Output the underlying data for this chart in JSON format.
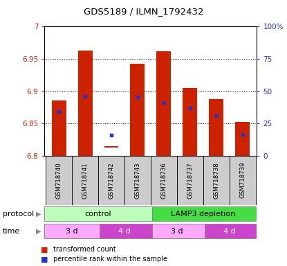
{
  "title": "GDS5189 / ILMN_1792432",
  "samples": [
    "GSM718740",
    "GSM718741",
    "GSM718742",
    "GSM718743",
    "GSM718736",
    "GSM718737",
    "GSM718738",
    "GSM718739"
  ],
  "bar_bottom": [
    6.8,
    6.8,
    6.813,
    6.8,
    6.8,
    6.8,
    6.8,
    6.8
  ],
  "bar_top": [
    6.885,
    6.963,
    6.815,
    6.942,
    6.962,
    6.905,
    6.888,
    6.852
  ],
  "blue_y": [
    6.868,
    6.892,
    6.832,
    6.891,
    6.882,
    6.874,
    6.862,
    6.833
  ],
  "ylim": [
    6.8,
    7.0
  ],
  "yticks_left": [
    6.8,
    6.85,
    6.9,
    6.95,
    7.0
  ],
  "yticks_right": [
    0,
    25,
    50,
    75,
    100
  ],
  "ytick_labels_left": [
    "6.8",
    "6.85",
    "6.9",
    "6.95",
    "7"
  ],
  "ytick_labels_right": [
    "0",
    "25",
    "50",
    "75",
    "100%"
  ],
  "bar_color": "#cc2200",
  "blue_color": "#2233cc",
  "protocol_control_color": "#bbffbb",
  "protocol_lamp3_color": "#44dd44",
  "time_3d_color": "#ffaaff",
  "time_4d_color": "#cc44cc",
  "sample_bg_color": "#cccccc",
  "protocol_label": "protocol",
  "time_label": "time",
  "control_label": "control",
  "lamp3_label": "LAMP3 depletion",
  "time_labels": [
    "3 d",
    "4 d",
    "3 d",
    "4 d"
  ],
  "legend_red": "transformed count",
  "legend_blue": "percentile rank within the sample",
  "bar_width": 0.55
}
